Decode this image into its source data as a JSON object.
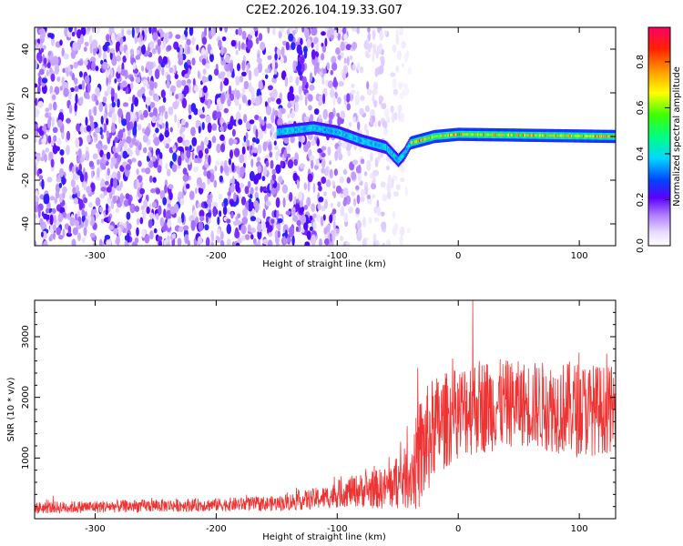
{
  "figure_title": "C2E2.2026.104.19.33.G07",
  "chart_data": [
    {
      "type": "heatmap",
      "title": "",
      "xlabel": "Height of straight line (km)",
      "ylabel": "Frequency (Hz)",
      "xlim": [
        -350,
        130
      ],
      "ylim": [
        -50,
        50
      ],
      "xticks": [
        -300,
        -200,
        -100,
        0,
        100
      ],
      "xtick_labels": [
        "-300",
        "-200",
        "-100",
        "0",
        "100"
      ],
      "yticks": [
        -40,
        -20,
        0,
        20,
        40
      ],
      "ytick_labels": [
        "-40",
        "-20",
        "0",
        "20",
        "40"
      ],
      "colorbar": {
        "label": "Normalized spectral amplitude",
        "range": [
          0,
          0.95
        ],
        "ticks": [
          0.0,
          0.2,
          0.4,
          0.6,
          0.8
        ],
        "tick_labels": [
          "0.0",
          "0.2",
          "0.4",
          "0.6",
          "0.8"
        ],
        "colormap": "rainbow"
      },
      "features": {
        "noise_region_x": [
          -350,
          -40
        ],
        "noise_amplitude": [
          0.05,
          0.25
        ],
        "track": [
          {
            "x": -150,
            "y": 2
          },
          {
            "x": -120,
            "y": 4
          },
          {
            "x": -100,
            "y": 2
          },
          {
            "x": -90,
            "y": 0
          },
          {
            "x": -80,
            "y": -2
          },
          {
            "x": -60,
            "y": -5
          },
          {
            "x": -50,
            "y": -11
          },
          {
            "x": -45,
            "y": -8
          },
          {
            "x": -40,
            "y": -3
          },
          {
            "x": -20,
            "y": 0
          },
          {
            "x": 0,
            "y": 1
          },
          {
            "x": 130,
            "y": 0
          }
        ],
        "track_amplitude_low_height": 0.4,
        "track_amplitude_high_height": 0.9
      }
    },
    {
      "type": "line",
      "title": "",
      "xlabel": "Height of straight line (km)",
      "ylabel": "SNR (10 * v/v)",
      "xlim": [
        -350,
        130
      ],
      "ylim": [
        0,
        3600
      ],
      "xticks": [
        -300,
        -200,
        -100,
        0,
        100
      ],
      "xtick_labels": [
        "-300",
        "-200",
        "-100",
        "0",
        "100"
      ],
      "yticks": [
        1000,
        2000,
        3000
      ],
      "ytick_labels": [
        "1000",
        "2000",
        "3000"
      ],
      "color": "#ee3333",
      "series": [
        {
          "name": "SNR",
          "envelope": [
            {
              "x": -350,
              "base": 180,
              "spread": 200
            },
            {
              "x": -200,
              "base": 230,
              "spread": 220
            },
            {
              "x": -150,
              "base": 250,
              "spread": 250
            },
            {
              "x": -110,
              "base": 350,
              "spread": 380
            },
            {
              "x": -90,
              "base": 450,
              "spread": 500
            },
            {
              "x": -60,
              "base": 500,
              "spread": 700
            },
            {
              "x": -40,
              "base": 700,
              "spread": 1100
            },
            {
              "x": -30,
              "base": 1100,
              "spread": 2000
            },
            {
              "x": -20,
              "base": 1500,
              "spread": 1700
            },
            {
              "x": 0,
              "base": 1750,
              "spread": 1500
            },
            {
              "x": 10,
              "base": 1850,
              "spread": 1650
            },
            {
              "x": 50,
              "base": 1900,
              "spread": 1400
            },
            {
              "x": 100,
              "base": 1800,
              "spread": 1600
            },
            {
              "x": 130,
              "base": 1800,
              "spread": 1400
            }
          ],
          "peak_value": 3600,
          "peak_x": 12
        }
      ]
    }
  ]
}
